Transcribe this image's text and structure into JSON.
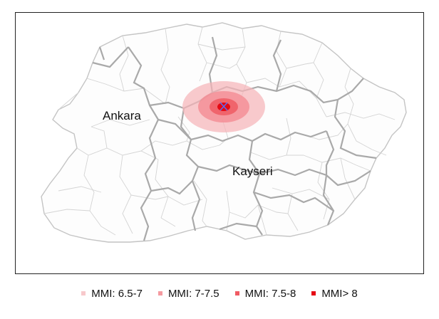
{
  "map": {
    "cities": [
      {
        "name": "Ankara"
      },
      {
        "name": "Kayseri"
      }
    ],
    "epicenter_marker": "x-mark",
    "zones": [
      {
        "label": "MMI: 6.5-7",
        "color": "#f7c9cc"
      },
      {
        "label": "MMI: 7-7.5",
        "color": "#f59aa0"
      },
      {
        "label": "MMI: 7.5-8",
        "color": "#f05b63"
      },
      {
        "label": "MMI> 8",
        "color": "#e50914"
      }
    ],
    "epicenter_color": "#5b6cf0",
    "border_colors": {
      "province": "#a8a8a8",
      "district": "#d2d2d2"
    }
  },
  "legend": [
    {
      "label": "MMI: 6.5-7",
      "color": "#f7c9cc"
    },
    {
      "label": "MMI: 7-7.5",
      "color": "#f59aa0"
    },
    {
      "label": "MMI: 7.5-8",
      "color": "#f05b63"
    },
    {
      "label": "MMI> 8",
      "color": "#e50914"
    }
  ]
}
